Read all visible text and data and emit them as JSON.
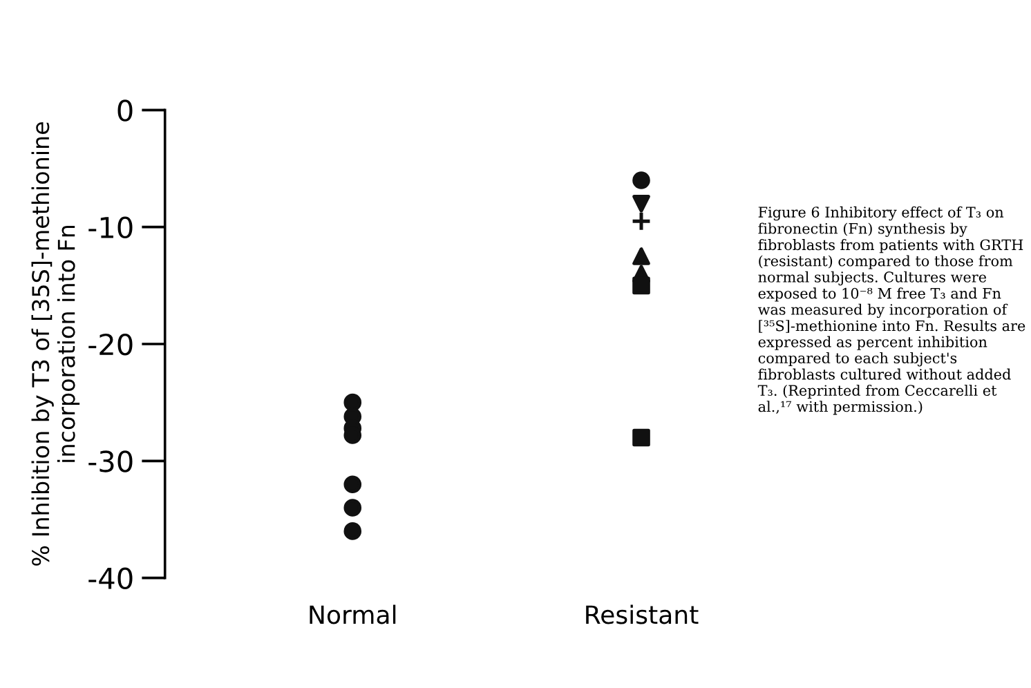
{
  "chart_data": {
    "type": "scatter",
    "categories": [
      "Normal",
      "Resistant"
    ],
    "ylabel": "% Inhibition by T3 of [35S]-methionine\nincorporation into Fn",
    "ylim": [
      -40,
      0
    ],
    "yticks": [
      -40,
      -30,
      -20,
      -10,
      0
    ],
    "grid": false,
    "legend": false,
    "series": [
      {
        "color": "#111111",
        "marker": "circle",
        "x": [
          "Normal",
          "Normal",
          "Normal",
          "Normal",
          "Normal",
          "Normal",
          "Normal"
        ],
        "values": [
          -25,
          -26.2,
          -27.2,
          -27.8,
          -32,
          -34,
          -36
        ]
      },
      {
        "color": "#111111",
        "marker": "circle",
        "x": [
          "Resistant"
        ],
        "values": [
          -6
        ]
      },
      {
        "color": "#111111",
        "marker": "triangle_down",
        "x": [
          "Resistant"
        ],
        "values": [
          -8
        ]
      },
      {
        "color": "#111111",
        "marker": "cross",
        "x": [
          "Resistant"
        ],
        "values": [
          -9.5
        ]
      },
      {
        "color": "#111111",
        "marker": "triangle",
        "x": [
          "Resistant"
        ],
        "values": [
          -12.5
        ]
      },
      {
        "color": "#111111",
        "marker": "triangle",
        "x": [
          "Resistant"
        ],
        "values": [
          -14
        ]
      },
      {
        "color": "#111111",
        "marker": "square",
        "x": [
          "Resistant"
        ],
        "values": [
          -15
        ]
      },
      {
        "color": "#111111",
        "marker": "square",
        "x": [
          "Resistant"
        ],
        "values": [
          -28
        ]
      }
    ],
    "annotations": [
      "Figure 6 Inhibitory effect of T₃ on fibronectin (Fn) synthesis by fibroblasts from patients with GRTH (resistant) compared to those from normal subjects. Cultures were exposed to 10⁻⁸ M free T₃ and Fn was measured by incorporation of [³⁵S]-methionine into Fn. Results are expressed as percent inhibition compared to each subject's fibroblasts cultured without added T₃. (Reprinted from Ceccarelli et al.,¹⁷ with permission.)"
    ]
  }
}
